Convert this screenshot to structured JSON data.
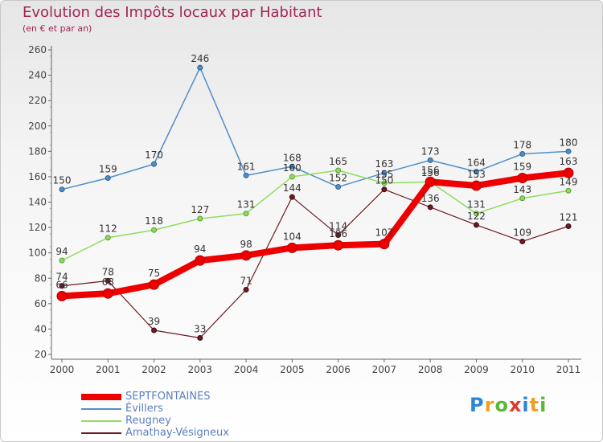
{
  "header": {
    "title": "Evolution des Impôts locaux par Habitant",
    "subtitle": "(en € et par an)"
  },
  "brand": {
    "text": "Proxiti"
  },
  "chart_data": {
    "type": "line",
    "title": "Evolution des Impôts locaux par Habitant",
    "subtitle": "(en € et par an)",
    "xlabel": "",
    "ylabel": "",
    "categories": [
      "2000",
      "2001",
      "2002",
      "2003",
      "2004",
      "2005",
      "2006",
      "2007",
      "2008",
      "2009",
      "2010",
      "2011"
    ],
    "ylim": [
      20,
      260
    ],
    "yticks": [
      20,
      40,
      60,
      80,
      100,
      120,
      140,
      160,
      180,
      200,
      220,
      240,
      260
    ],
    "grid": false,
    "legend_position": "bottom-left",
    "series": [
      {
        "name": "SEPTFONTAINES",
        "color": "#ee0000",
        "values": [
          66,
          68,
          75,
          94,
          98,
          104,
          106,
          107,
          156,
          153,
          159,
          163
        ]
      },
      {
        "name": "Évillers",
        "color": "#4f8fc9",
        "values": [
          150,
          159,
          170,
          246,
          161,
          168,
          152,
          163,
          173,
          164,
          178,
          180
        ]
      },
      {
        "name": "Reugney",
        "color": "#8fdc5e",
        "values": [
          94,
          112,
          118,
          127,
          131,
          160,
          165,
          155,
          156,
          131,
          143,
          149
        ]
      },
      {
        "name": "Amathay-Vésigneux",
        "color": "#6e1a22",
        "values": [
          74,
          78,
          39,
          33,
          71,
          144,
          114,
          150,
          136,
          122,
          109,
          121
        ]
      }
    ]
  }
}
